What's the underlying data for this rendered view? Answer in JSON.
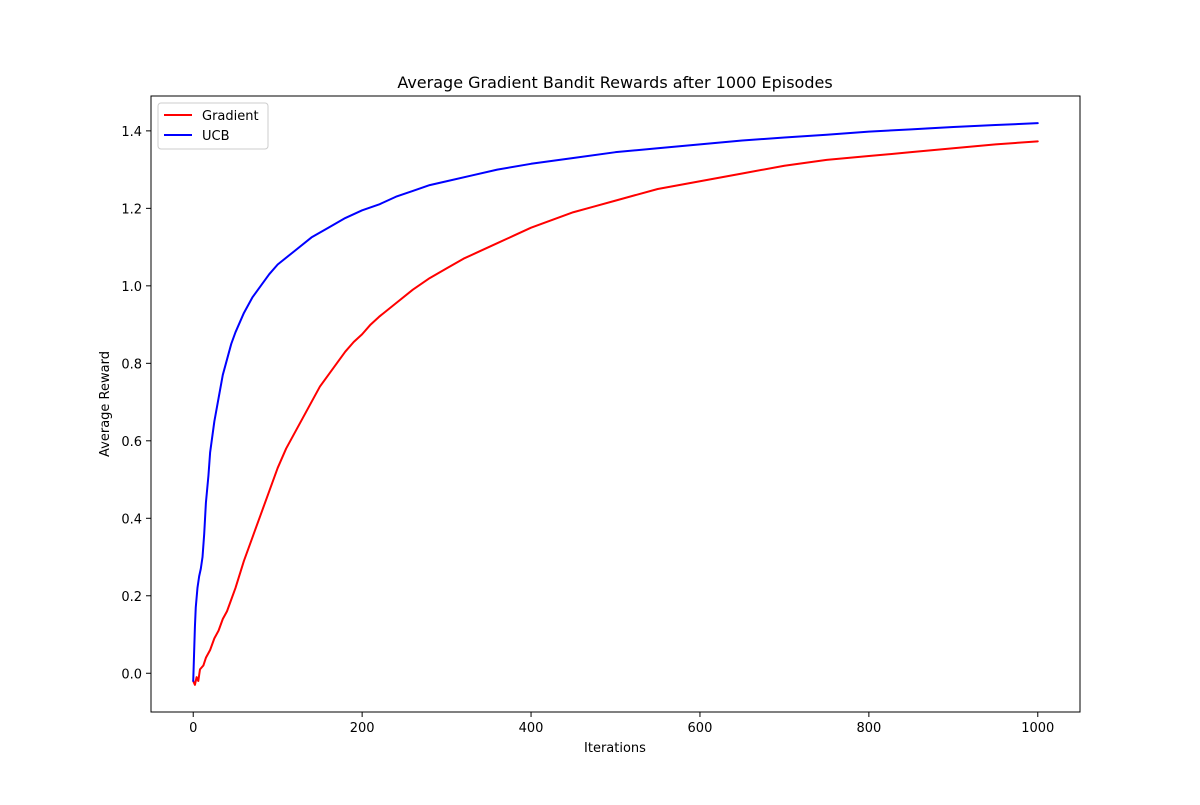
{
  "chart_data": {
    "type": "line",
    "title": "Average Gradient Bandit Rewards after 1000 Episodes",
    "xlabel": "Iterations",
    "ylabel": "Average Reward",
    "xlim": [
      -50,
      1050
    ],
    "ylim": [
      -0.1,
      1.49
    ],
    "xticks": [
      0,
      200,
      400,
      600,
      800,
      1000
    ],
    "yticks": [
      0.0,
      0.2,
      0.4,
      0.6,
      0.8,
      1.0,
      1.2,
      1.4
    ],
    "grid": false,
    "legend": "upper left",
    "series": [
      {
        "name": "Gradient",
        "color": "#ff0000",
        "points": [
          [
            0,
            -0.02
          ],
          [
            2,
            -0.03
          ],
          [
            4,
            -0.01
          ],
          [
            6,
            -0.02
          ],
          [
            8,
            0.01
          ],
          [
            12,
            0.02
          ],
          [
            15,
            0.04
          ],
          [
            20,
            0.06
          ],
          [
            25,
            0.09
          ],
          [
            30,
            0.11
          ],
          [
            35,
            0.14
          ],
          [
            40,
            0.16
          ],
          [
            45,
            0.19
          ],
          [
            50,
            0.22
          ],
          [
            60,
            0.29
          ],
          [
            70,
            0.35
          ],
          [
            80,
            0.41
          ],
          [
            90,
            0.47
          ],
          [
            100,
            0.53
          ],
          [
            110,
            0.58
          ],
          [
            120,
            0.62
          ],
          [
            130,
            0.66
          ],
          [
            140,
            0.7
          ],
          [
            150,
            0.74
          ],
          [
            160,
            0.77
          ],
          [
            170,
            0.8
          ],
          [
            180,
            0.83
          ],
          [
            190,
            0.855
          ],
          [
            200,
            0.875
          ],
          [
            210,
            0.9
          ],
          [
            220,
            0.92
          ],
          [
            240,
            0.955
          ],
          [
            260,
            0.99
          ],
          [
            280,
            1.02
          ],
          [
            300,
            1.045
          ],
          [
            320,
            1.07
          ],
          [
            340,
            1.09
          ],
          [
            360,
            1.11
          ],
          [
            380,
            1.13
          ],
          [
            400,
            1.15
          ],
          [
            425,
            1.17
          ],
          [
            450,
            1.19
          ],
          [
            475,
            1.205
          ],
          [
            500,
            1.22
          ],
          [
            550,
            1.25
          ],
          [
            600,
            1.27
          ],
          [
            650,
            1.29
          ],
          [
            700,
            1.31
          ],
          [
            750,
            1.325
          ],
          [
            800,
            1.335
          ],
          [
            850,
            1.345
          ],
          [
            900,
            1.355
          ],
          [
            950,
            1.365
          ],
          [
            1000,
            1.373
          ]
        ]
      },
      {
        "name": "UCB",
        "color": "#0000ff",
        "points": [
          [
            0,
            -0.02
          ],
          [
            1,
            0.05
          ],
          [
            2,
            0.12
          ],
          [
            3,
            0.17
          ],
          [
            5,
            0.22
          ],
          [
            7,
            0.25
          ],
          [
            9,
            0.27
          ],
          [
            11,
            0.3
          ],
          [
            13,
            0.36
          ],
          [
            15,
            0.44
          ],
          [
            18,
            0.51
          ],
          [
            20,
            0.57
          ],
          [
            25,
            0.65
          ],
          [
            30,
            0.71
          ],
          [
            35,
            0.77
          ],
          [
            40,
            0.81
          ],
          [
            45,
            0.85
          ],
          [
            50,
            0.88
          ],
          [
            60,
            0.93
          ],
          [
            70,
            0.97
          ],
          [
            80,
            1.0
          ],
          [
            90,
            1.03
          ],
          [
            100,
            1.055
          ],
          [
            120,
            1.09
          ],
          [
            140,
            1.125
          ],
          [
            160,
            1.15
          ],
          [
            180,
            1.175
          ],
          [
            200,
            1.195
          ],
          [
            220,
            1.21
          ],
          [
            240,
            1.23
          ],
          [
            260,
            1.245
          ],
          [
            280,
            1.26
          ],
          [
            300,
            1.27
          ],
          [
            330,
            1.285
          ],
          [
            360,
            1.3
          ],
          [
            400,
            1.315
          ],
          [
            450,
            1.33
          ],
          [
            500,
            1.345
          ],
          [
            550,
            1.355
          ],
          [
            600,
            1.365
          ],
          [
            650,
            1.375
          ],
          [
            700,
            1.383
          ],
          [
            750,
            1.39
          ],
          [
            800,
            1.398
          ],
          [
            850,
            1.404
          ],
          [
            900,
            1.41
          ],
          [
            950,
            1.415
          ],
          [
            1000,
            1.42
          ]
        ]
      }
    ]
  }
}
